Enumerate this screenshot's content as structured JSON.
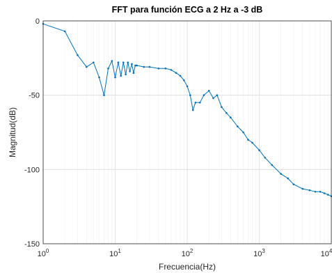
{
  "chart_data": {
    "type": "line",
    "title": "FFT para función ECG a 2 Hz a -3 dB",
    "xlabel": "Frecuencia(Hz)",
    "ylabel": "Magnitud(dB)",
    "x_scale": "log",
    "xlim": [
      1,
      10000
    ],
    "ylim": [
      -150,
      0
    ],
    "x_tick_labels": [
      {
        "base": "10",
        "exp": "0"
      },
      {
        "base": "10",
        "exp": "1"
      },
      {
        "base": "10",
        "exp": "2"
      },
      {
        "base": "10",
        "exp": "3"
      },
      {
        "base": "10",
        "exp": "4"
      }
    ],
    "y_tick_labels": [
      "0",
      "-50",
      "-100",
      "-150"
    ],
    "grid": true,
    "color": "#0072BD",
    "series": [
      {
        "x": [
          1,
          2,
          3,
          4,
          5,
          6,
          7,
          8,
          9,
          10,
          11,
          12,
          13,
          14,
          15,
          16,
          17,
          18,
          19,
          20,
          25,
          30,
          40,
          50,
          60,
          70,
          80,
          90,
          100,
          110,
          120,
          130,
          150,
          170,
          200,
          230,
          260,
          300,
          350,
          400,
          500,
          600,
          700,
          800,
          1000,
          1200,
          1500,
          2000,
          2500,
          3000,
          4000,
          5000,
          6000,
          7000,
          8000,
          9000,
          10000
        ],
        "y": [
          -2,
          -7,
          -23,
          -31,
          -28,
          -38,
          -50,
          -32,
          -27,
          -38,
          -28,
          -37,
          -28,
          -36,
          -28,
          -34,
          -29,
          -35,
          -30,
          -30,
          -31,
          -31,
          -32,
          -32,
          -33,
          -35,
          -37,
          -40,
          -44,
          -50,
          -60,
          -55,
          -55,
          -50,
          -47,
          -52,
          -50,
          -58,
          -62,
          -65,
          -71,
          -75,
          -80,
          -82,
          -87,
          -92,
          -97,
          -103,
          -106,
          -110,
          -113,
          -114,
          -115,
          -115,
          -116,
          -117,
          -118
        ]
      }
    ]
  }
}
